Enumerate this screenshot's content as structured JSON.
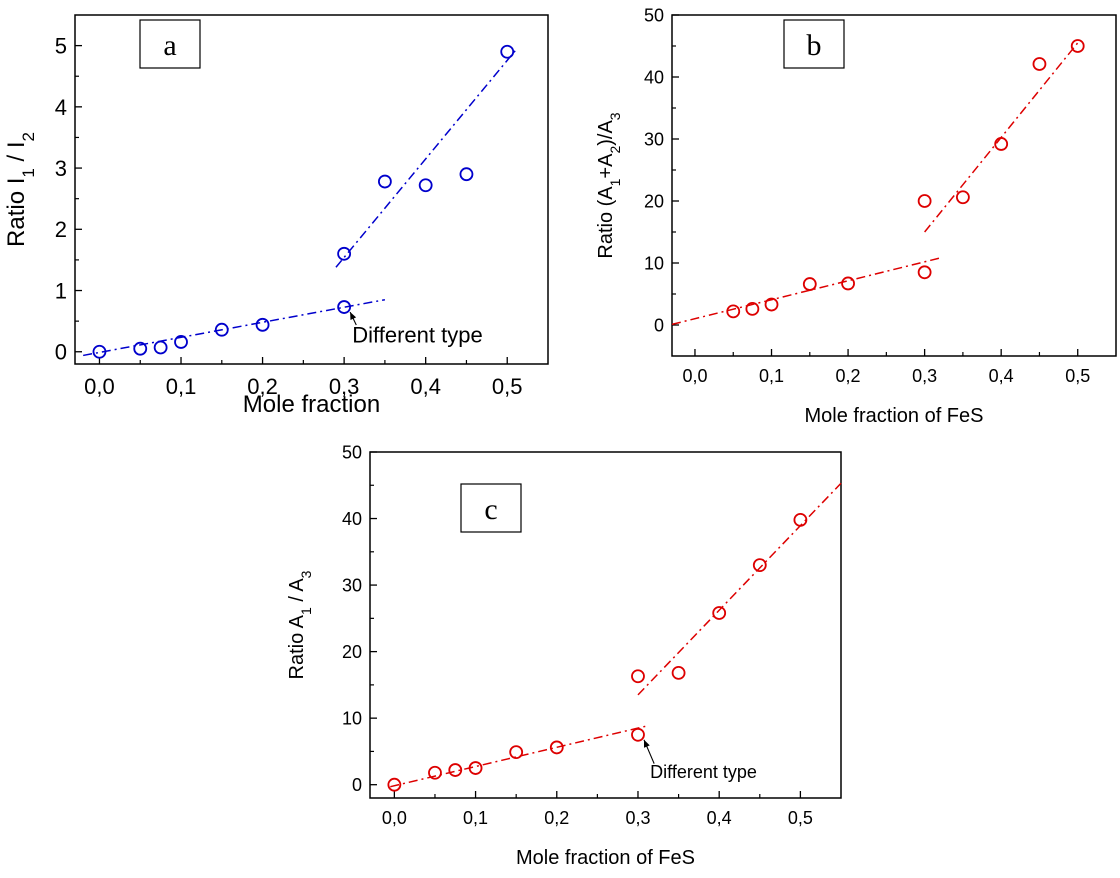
{
  "chart_data": [
    {
      "type": "scatter",
      "panel_label": "a",
      "xlabel": "Mole fraction",
      "ylabel_parts": [
        {
          "t": "Ratio I"
        },
        {
          "t": "1",
          "sub": true
        },
        {
          "t": " / I"
        },
        {
          "t": "2",
          "sub": true
        }
      ],
      "xlim": [
        -0.03,
        0.55
      ],
      "ylim": [
        -0.2,
        5.5
      ],
      "xticks": [
        "0,0",
        "0,1",
        "0,2",
        "0,3",
        "0,4",
        "0,5"
      ],
      "xtick_values": [
        0,
        0.1,
        0.2,
        0.3,
        0.4,
        0.5
      ],
      "yticks": [
        "0",
        "1",
        "2",
        "3",
        "4",
        "5"
      ],
      "ytick_values": [
        0,
        1,
        2,
        3,
        4,
        5
      ],
      "color": "#0000cc",
      "x": [
        0.0,
        0.05,
        0.075,
        0.1,
        0.15,
        0.2,
        0.3,
        0.3,
        0.35,
        0.4,
        0.45,
        0.5
      ],
      "y": [
        0.0,
        0.05,
        0.07,
        0.16,
        0.36,
        0.44,
        0.73,
        1.6,
        2.78,
        2.72,
        2.9,
        4.9
      ],
      "fit_lines": [
        {
          "x": [
            -0.02,
            0.35
          ],
          "y": [
            -0.06,
            0.85
          ]
        },
        {
          "x": [
            0.29,
            0.51
          ],
          "y": [
            1.38,
            4.92
          ]
        }
      ],
      "annotation": {
        "text": "Different type",
        "point": [
          0.3,
          0.73
        ],
        "label_at": [
          0.31,
          0.15
        ]
      }
    },
    {
      "type": "scatter",
      "panel_label": "b",
      "xlabel": "Mole fraction of FeS",
      "ylabel_parts": [
        {
          "t": "Ratio (A"
        },
        {
          "t": "1",
          "sub": true
        },
        {
          "t": "+A"
        },
        {
          "t": "2",
          "sub": true
        },
        {
          "t": ")/A"
        },
        {
          "t": "3",
          "sub": true
        }
      ],
      "xlim": [
        -0.03,
        0.55
      ],
      "ylim": [
        -5,
        50
      ],
      "xticks": [
        "0,0",
        "0,1",
        "0,2",
        "0,3",
        "0,4",
        "0,5"
      ],
      "xtick_values": [
        0,
        0.1,
        0.2,
        0.3,
        0.4,
        0.5
      ],
      "yticks": [
        "0",
        "10",
        "20",
        "30",
        "40",
        "50"
      ],
      "ytick_values": [
        0,
        10,
        20,
        30,
        40,
        50
      ],
      "color": "#dd0000",
      "x": [
        0.05,
        0.075,
        0.1,
        0.15,
        0.2,
        0.3,
        0.3,
        0.35,
        0.4,
        0.45,
        0.5
      ],
      "y": [
        2.2,
        2.6,
        3.3,
        6.6,
        6.7,
        8.5,
        20.0,
        20.6,
        29.2,
        42.1,
        45.0
      ],
      "fit_lines": [
        {
          "x": [
            -0.03,
            0.32
          ],
          "y": [
            0.1,
            10.8
          ]
        },
        {
          "x": [
            0.3,
            0.5
          ],
          "y": [
            15.0,
            45.5
          ]
        }
      ]
    },
    {
      "type": "scatter",
      "panel_label": "c",
      "xlabel": "Mole fraction of FeS",
      "ylabel_parts": [
        {
          "t": "Ratio A"
        },
        {
          "t": "1",
          "sub": true
        },
        {
          "t": " / A"
        },
        {
          "t": "3",
          "sub": true
        }
      ],
      "xlim": [
        -0.03,
        0.55
      ],
      "ylim": [
        -2,
        50
      ],
      "xticks": [
        "0,0",
        "0,1",
        "0,2",
        "0,3",
        "0,4",
        "0,5"
      ],
      "xtick_values": [
        0,
        0.1,
        0.2,
        0.3,
        0.4,
        0.5
      ],
      "yticks": [
        "0",
        "10",
        "20",
        "30",
        "40",
        "50"
      ],
      "ytick_values": [
        0,
        10,
        20,
        30,
        40,
        50
      ],
      "color": "#dd0000",
      "x": [
        0.0,
        0.05,
        0.075,
        0.1,
        0.15,
        0.2,
        0.3,
        0.3,
        0.35,
        0.4,
        0.45,
        0.5
      ],
      "y": [
        0.0,
        1.8,
        2.2,
        2.5,
        4.9,
        5.6,
        7.5,
        16.3,
        16.8,
        25.8,
        33.0,
        39.8
      ],
      "fit_lines": [
        {
          "x": [
            -0.005,
            0.31
          ],
          "y": [
            -0.3,
            8.8
          ]
        },
        {
          "x": [
            0.3,
            0.55
          ],
          "y": [
            13.5,
            45.3
          ]
        }
      ],
      "annotation": {
        "text": "Different type",
        "point": [
          0.3,
          7.5
        ],
        "label_at": [
          0.315,
          1.0
        ]
      }
    }
  ]
}
